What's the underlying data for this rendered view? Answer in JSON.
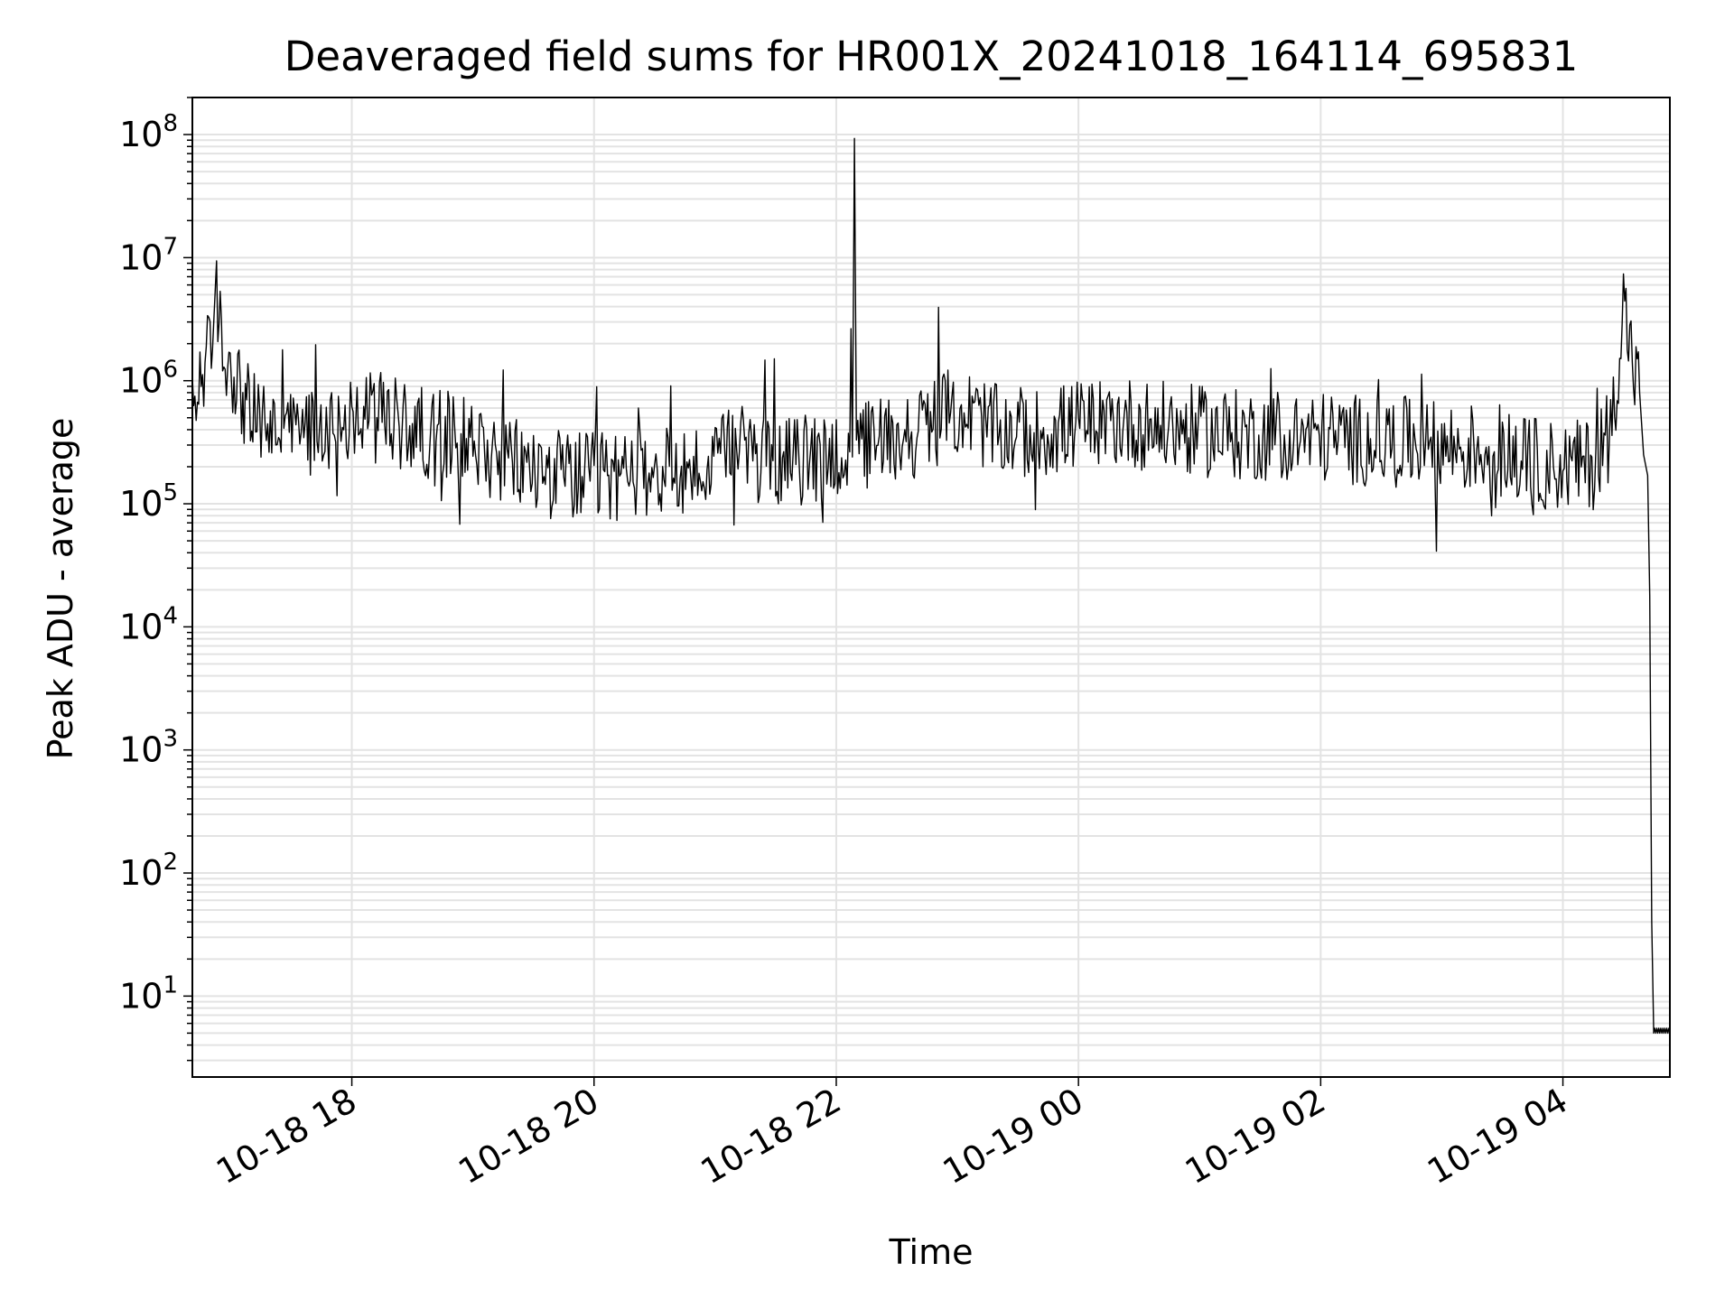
{
  "chart_data": {
    "type": "line",
    "title": "Deaveraged field sums for HR001X_20241018_164114_695831",
    "xlabel": "Time",
    "ylabel": "Peak ADU - average",
    "y_scale": "log",
    "ylim": [
      2.2,
      200000000
    ],
    "xlim": [
      "2024-10-18 16:41",
      "2024-10-19 04:53"
    ],
    "grid": true,
    "line_color": "#000000",
    "grid_color": "#e3e3e3",
    "x_ticks": [
      "10-18 18",
      "10-18 20",
      "10-18 22",
      "10-19 00",
      "10-19 02",
      "10-19 04"
    ],
    "y_ticks": [
      {
        "base": "10",
        "exp": "1"
      },
      {
        "base": "10",
        "exp": "2"
      },
      {
        "base": "10",
        "exp": "3"
      },
      {
        "base": "10",
        "exp": "4"
      },
      {
        "base": "10",
        "exp": "5"
      },
      {
        "base": "10",
        "exp": "6"
      },
      {
        "base": "10",
        "exp": "7"
      },
      {
        "base": "10",
        "exp": "8"
      }
    ],
    "series": [
      {
        "x": [
          "2024-10-18 16:41",
          "2024-10-18 16:46",
          "2024-10-18 16:51",
          "2024-10-18 16:53",
          "2024-10-18 16:56",
          "2024-10-18 17:01",
          "2024-10-18 17:06",
          "2024-10-18 17:11",
          "2024-10-18 17:21",
          "2024-10-18 17:31",
          "2024-10-18 17:46",
          "2024-10-18 18:00",
          "2024-10-18 18:15",
          "2024-10-18 18:30",
          "2024-10-18 18:45",
          "2024-10-18 19:00",
          "2024-10-18 19:15",
          "2024-10-18 19:30",
          "2024-10-18 19:45",
          "2024-10-18 20:00",
          "2024-10-18 20:30",
          "2024-10-18 21:00",
          "2024-10-18 21:10",
          "2024-10-18 21:20",
          "2024-10-18 21:40",
          "2024-10-18 22:00",
          "2024-10-18 22:08",
          "2024-10-18 22:09",
          "2024-10-18 22:10",
          "2024-10-18 22:20",
          "2024-10-18 22:40",
          "2024-10-18 23:00",
          "2024-10-18 23:10",
          "2024-10-18 23:20",
          "2024-10-18 23:40",
          "2024-10-19 00:00",
          "2024-10-19 00:20",
          "2024-10-19 00:40",
          "2024-10-19 01:00",
          "2024-10-19 01:20",
          "2024-10-19 01:40",
          "2024-10-19 02:00",
          "2024-10-19 02:20",
          "2024-10-19 02:40",
          "2024-10-19 03:00",
          "2024-10-19 03:20",
          "2024-10-19 03:40",
          "2024-10-19 04:00",
          "2024-10-19 04:15",
          "2024-10-19 04:25",
          "2024-10-19 04:30",
          "2024-10-19 04:35",
          "2024-10-19 04:38",
          "2024-10-19 04:40",
          "2024-10-19 04:42",
          "2024-10-19 04:43",
          "2024-10-19 04:44",
          "2024-10-19 04:45",
          "2024-10-19 04:53"
        ],
        "y": [
          500000,
          1300000,
          1800000,
          5300000,
          1600000,
          1300000,
          700000,
          500000,
          420000,
          380000,
          420000,
          520000,
          500000,
          400000,
          360000,
          320000,
          230000,
          190000,
          170000,
          160000,
          180000,
          190000,
          290000,
          230000,
          220000,
          260000,
          240000,
          93000000,
          270000,
          330000,
          380000,
          580000,
          480000,
          390000,
          370000,
          440000,
          470000,
          420000,
          390000,
          360000,
          360000,
          350000,
          330000,
          320000,
          290000,
          280000,
          220000,
          200000,
          210000,
          550000,
          4300000,
          1300000,
          800000,
          250000,
          170000,
          18000,
          40,
          5,
          5
        ]
      }
    ]
  }
}
